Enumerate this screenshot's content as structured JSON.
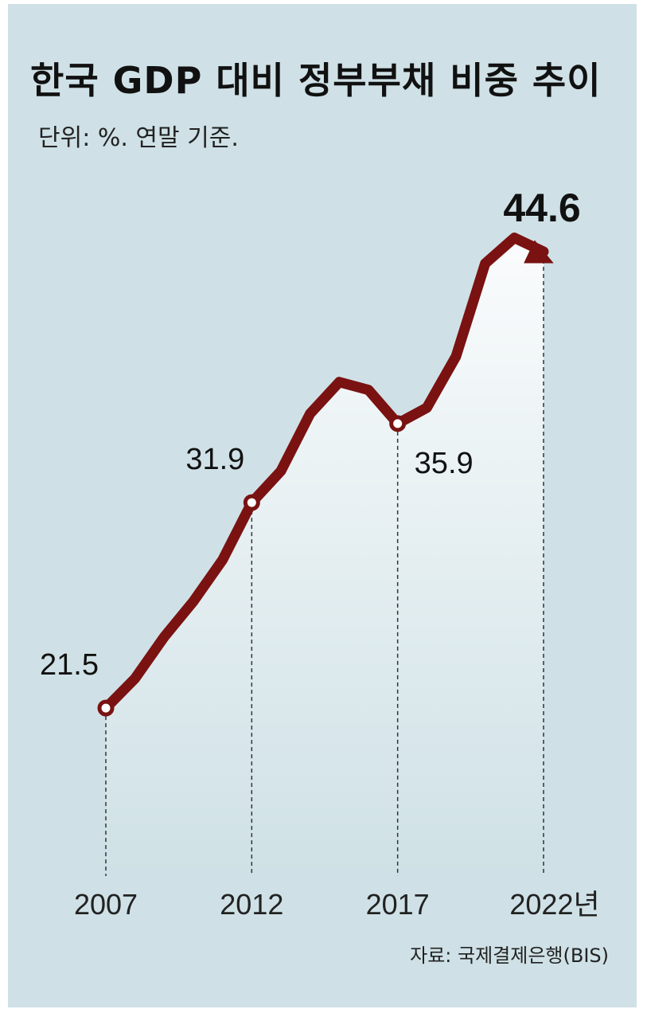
{
  "chart_data": {
    "type": "line",
    "title": "한국 GDP 대비 정부부채 비중 추이",
    "subtitle": "단위: %. 연말 기준.",
    "source": "자료: 국제결제은행(BIS)",
    "x": [
      2007,
      2008,
      2009,
      2010,
      2011,
      2012,
      2013,
      2014,
      2015,
      2016,
      2017,
      2018,
      2019,
      2020,
      2021,
      2022
    ],
    "series": [
      {
        "name": "정부부채 비중",
        "color": "#7a1212",
        "values": [
          21.5,
          23.0,
          25.1,
          26.9,
          29.0,
          31.9,
          33.5,
          36.4,
          38.0,
          37.6,
          35.9,
          36.7,
          39.3,
          44.0,
          45.3,
          44.6
        ],
        "value_labels": [
          "21.5",
          null,
          null,
          null,
          null,
          "31.9",
          null,
          null,
          null,
          null,
          "35.9",
          null,
          null,
          null,
          null,
          "44.6"
        ]
      }
    ],
    "xlim": [
      2007,
      2022
    ],
    "xticks": [
      2007,
      2012,
      2017,
      {
        "value": 2022,
        "label": "2022년"
      }
    ],
    "ylim": [
      13,
      50
    ]
  }
}
